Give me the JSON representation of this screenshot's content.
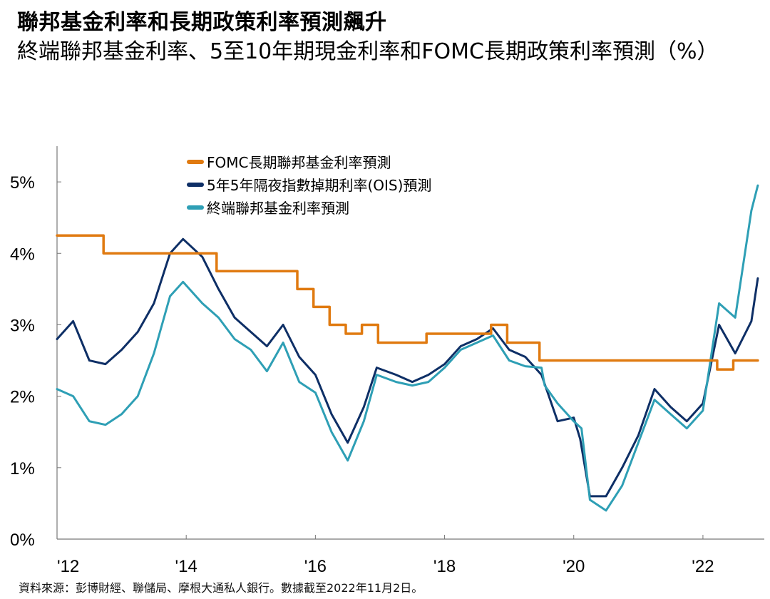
{
  "page": {
    "title": "聯邦基金利率和長期政策利率預測飆升",
    "subtitle": "終端聯邦基金利率、5至10年期現金利率和FOMC長期政策利率預測（%）",
    "source": "資料來源：彭博財經、聯儲局、摩根大通私人銀行。數據截至2022年11月2日。"
  },
  "chart_data": {
    "type": "line",
    "title": "聯邦基金利率和長期政策利率預測飆升",
    "subtitle": "終端聯邦基金利率、5至10年期現金利率和FOMC長期政策利率預測（%）",
    "xlabel": "",
    "ylabel": "",
    "x_range": [
      2012.0,
      2022.95
    ],
    "ylim": [
      0,
      5.5
    ],
    "x_ticks": [
      2012,
      2014,
      2016,
      2018,
      2020,
      2022
    ],
    "x_tick_labels": [
      "'12",
      "'14",
      "'16",
      "'18",
      "'20",
      "'22"
    ],
    "y_ticks": [
      0,
      1,
      2,
      3,
      4,
      5
    ],
    "y_tick_labels": [
      "0%",
      "1%",
      "2%",
      "3%",
      "4%",
      "5%"
    ],
    "grid": false,
    "legend_position": "top-center",
    "series": [
      {
        "name": "FOMC長期聯邦基金利率預測",
        "color": "#E07A10",
        "step": true,
        "x": [
          2012.0,
          2012.72,
          2014.47,
          2015.72,
          2015.97,
          2016.22,
          2016.47,
          2016.72,
          2016.97,
          2017.72,
          2018.22,
          2018.72,
          2018.97,
          2019.47,
          2022.22,
          2022.47,
          2022.85
        ],
        "y": [
          4.25,
          4.0,
          3.75,
          3.5,
          3.25,
          3.0,
          2.875,
          3.0,
          2.75,
          2.875,
          2.875,
          3.0,
          2.75,
          2.5,
          2.375,
          2.5,
          2.5
        ]
      },
      {
        "name": "5年5年隔夜指數掉期利率(OIS)預測",
        "color": "#0E2F66",
        "step": false,
        "x": [
          2012.0,
          2012.25,
          2012.5,
          2012.75,
          2013.0,
          2013.25,
          2013.5,
          2013.75,
          2013.95,
          2014.25,
          2014.5,
          2014.75,
          2015.0,
          2015.25,
          2015.5,
          2015.75,
          2016.0,
          2016.25,
          2016.5,
          2016.75,
          2016.95,
          2017.25,
          2017.5,
          2017.75,
          2018.0,
          2018.25,
          2018.5,
          2018.75,
          2019.0,
          2019.25,
          2019.5,
          2019.75,
          2020.0,
          2020.1,
          2020.25,
          2020.5,
          2020.75,
          2021.0,
          2021.25,
          2021.5,
          2021.75,
          2022.0,
          2022.25,
          2022.5,
          2022.75,
          2022.85
        ],
        "y": [
          2.8,
          3.05,
          2.5,
          2.45,
          2.65,
          2.9,
          3.3,
          4.0,
          4.2,
          3.95,
          3.5,
          3.1,
          2.9,
          2.7,
          3.0,
          2.55,
          2.3,
          1.75,
          1.35,
          1.85,
          2.4,
          2.3,
          2.2,
          2.3,
          2.45,
          2.7,
          2.8,
          2.95,
          2.65,
          2.55,
          2.3,
          1.65,
          1.7,
          1.4,
          0.6,
          0.6,
          1.0,
          1.45,
          2.1,
          1.85,
          1.65,
          1.9,
          3.0,
          2.6,
          3.05,
          3.65
        ]
      },
      {
        "name": "終端聯邦基金利率預測",
        "color": "#2E9FB5",
        "step": false,
        "x": [
          2012.0,
          2012.25,
          2012.5,
          2012.75,
          2013.0,
          2013.25,
          2013.5,
          2013.75,
          2013.95,
          2014.25,
          2014.5,
          2014.75,
          2015.0,
          2015.25,
          2015.5,
          2015.75,
          2016.0,
          2016.25,
          2016.5,
          2016.75,
          2016.95,
          2017.25,
          2017.5,
          2017.75,
          2018.0,
          2018.25,
          2018.5,
          2018.75,
          2019.0,
          2019.25,
          2019.5,
          2019.55,
          2019.75,
          2020.0,
          2020.12,
          2020.25,
          2020.5,
          2020.75,
          2021.0,
          2021.25,
          2021.5,
          2021.75,
          2022.0,
          2022.25,
          2022.5,
          2022.75,
          2022.85
        ],
        "y": [
          2.1,
          2.0,
          1.65,
          1.6,
          1.75,
          2.0,
          2.6,
          3.4,
          3.6,
          3.3,
          3.1,
          2.8,
          2.65,
          2.35,
          2.75,
          2.2,
          2.05,
          1.5,
          1.1,
          1.65,
          2.3,
          2.2,
          2.15,
          2.2,
          2.4,
          2.65,
          2.75,
          2.85,
          2.5,
          2.42,
          2.4,
          2.15,
          1.9,
          1.65,
          1.55,
          0.55,
          0.4,
          0.75,
          1.35,
          1.95,
          1.75,
          1.55,
          1.8,
          3.3,
          3.1,
          4.6,
          4.95
        ]
      }
    ]
  }
}
